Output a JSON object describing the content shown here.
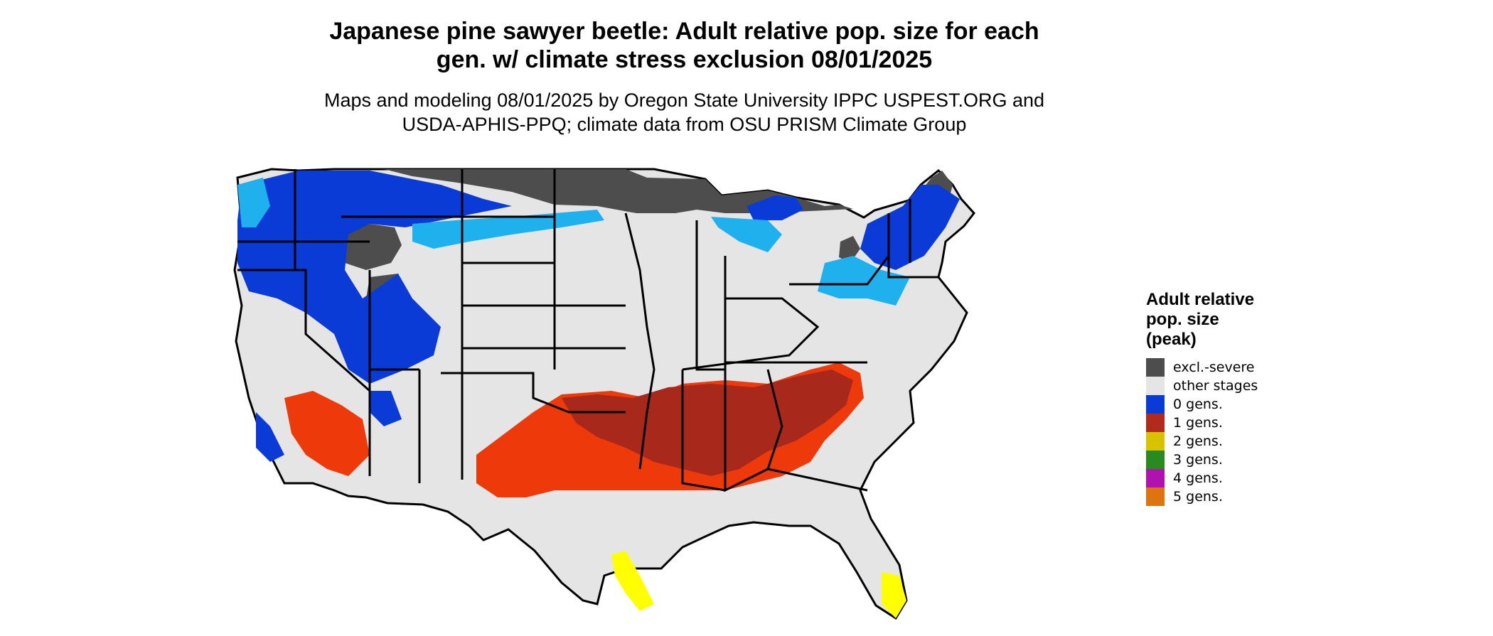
{
  "map": {
    "title_line1": "Japanese pine sawyer beetle: Adult relative pop. size for each",
    "title_line2": "gen. w/ climate stress exclusion 08/01/2025",
    "subtitle_line1": "Maps and modeling 08/01/2025 by Oregon State University IPPC USPEST.ORG and",
    "subtitle_line2": "USDA-APHIS-PPQ; climate data from OSU PRISM Climate Group",
    "region": "contiguous-united-states"
  },
  "legend": {
    "title_line1": "Adult relative",
    "title_line2": "pop. size",
    "title_line3": "(peak)",
    "items": [
      {
        "label": "excl.-severe",
        "color": "#4d4d4d"
      },
      {
        "label": "other stages",
        "color": "#e5e5e5"
      },
      {
        "label": "0 gens.",
        "color": "#0a3bd6"
      },
      {
        "label": "1 gens.",
        "color": "#b22a1e"
      },
      {
        "label": "2 gens.",
        "color": "#d8c300"
      },
      {
        "label": "3 gens.",
        "color": "#2a8a22"
      },
      {
        "label": "4 gens.",
        "color": "#b012b0"
      },
      {
        "label": "5 gens.",
        "color": "#dd7410"
      }
    ]
  },
  "colors": {
    "background": "#ffffff",
    "state_border": "#000000",
    "light_blue": "#1fb0ee",
    "orange_red": "#ee3a0a",
    "yellow": "#ffff00"
  }
}
